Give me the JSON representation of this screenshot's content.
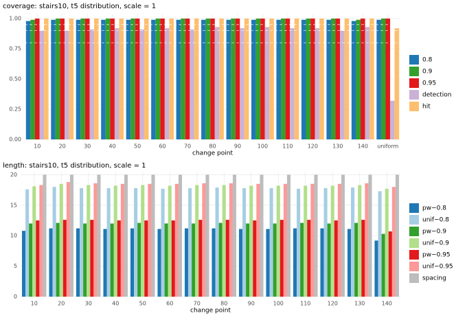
{
  "chart_data": [
    {
      "type": "bar",
      "title": "coverage: stairs10, t5 distribution, scale = 1",
      "x_label": "change point",
      "categories": [
        "10",
        "20",
        "30",
        "40",
        "50",
        "60",
        "70",
        "80",
        "90",
        "100",
        "110",
        "120",
        "130",
        "140",
        "uniform"
      ],
      "series": [
        {
          "name": "0.8",
          "color": "#1f78b4",
          "values": [
            0.98,
            0.99,
            0.99,
            0.99,
            0.99,
            0.99,
            0.99,
            0.99,
            0.99,
            0.99,
            0.99,
            0.99,
            0.99,
            0.98,
            0.99
          ]
        },
        {
          "name": "0.9",
          "color": "#33a02c",
          "values": [
            0.99,
            1.0,
            1.0,
            1.0,
            1.0,
            1.0,
            1.0,
            1.0,
            1.0,
            1.0,
            1.0,
            1.0,
            1.0,
            0.99,
            1.0
          ]
        },
        {
          "name": "0.95",
          "color": "#e31a1c",
          "values": [
            1.0,
            1.0,
            1.0,
            1.0,
            1.0,
            1.0,
            1.0,
            1.0,
            1.0,
            1.0,
            1.0,
            1.0,
            1.0,
            1.0,
            1.0
          ]
        },
        {
          "name": "detection",
          "color": "#cab2d6",
          "values": [
            0.9,
            0.9,
            0.91,
            0.92,
            0.91,
            0.92,
            0.91,
            0.93,
            0.92,
            0.93,
            0.92,
            0.92,
            0.9,
            0.93,
            0.32
          ]
        },
        {
          "name": "hit",
          "color": "#fdbf6f",
          "values": [
            1.0,
            1.0,
            1.0,
            1.0,
            1.0,
            1.0,
            1.0,
            1.0,
            1.0,
            1.0,
            1.0,
            1.0,
            1.0,
            1.0,
            0.92
          ]
        }
      ],
      "ylim": [
        0,
        1.04
      ],
      "yticks": [
        {
          "value": 0,
          "label": "0.00"
        },
        0.25,
        {
          "value": 0.5,
          "label": "0.50"
        },
        0.75,
        {
          "value": 1,
          "label": "1.00"
        }
      ],
      "hlines": [
        0.8,
        0.9,
        0.95
      ],
      "grid": true,
      "legend": "right"
    },
    {
      "type": "bar",
      "title": "length: stairs10, t5 distribution, scale = 1",
      "x_label": "change point",
      "categories": [
        "10",
        "20",
        "30",
        "40",
        "50",
        "60",
        "70",
        "80",
        "90",
        "100",
        "110",
        "120",
        "130",
        "140"
      ],
      "series": [
        {
          "name": "pw−0.8",
          "color": "#1f78b4",
          "values": [
            10.8,
            11.2,
            11.2,
            11.1,
            11.2,
            11.1,
            11.2,
            11.2,
            11.1,
            11.1,
            11.2,
            11.2,
            11.1,
            9.2
          ]
        },
        {
          "name": "unif−0.8",
          "color": "#a6cee3",
          "values": [
            17.6,
            18.0,
            17.8,
            17.8,
            17.8,
            17.7,
            17.8,
            17.9,
            17.8,
            17.8,
            17.7,
            17.8,
            17.9,
            17.3
          ]
        },
        {
          "name": "pw−0.9",
          "color": "#33a02c",
          "values": [
            12.0,
            12.1,
            12.0,
            12.0,
            12.1,
            12.0,
            12.0,
            12.1,
            12.0,
            12.0,
            12.1,
            12.0,
            12.1,
            10.3
          ]
        },
        {
          "name": "unif−0.9",
          "color": "#b2df8a",
          "values": [
            18.1,
            18.5,
            18.3,
            18.2,
            18.3,
            18.2,
            18.3,
            18.3,
            18.2,
            18.2,
            18.2,
            18.2,
            18.3,
            17.7
          ]
        },
        {
          "name": "pw−0.95",
          "color": "#e31a1c",
          "values": [
            12.5,
            12.6,
            12.6,
            12.5,
            12.5,
            12.5,
            12.6,
            12.6,
            12.5,
            12.6,
            12.6,
            12.5,
            12.6,
            10.7
          ]
        },
        {
          "name": "unif−0.95",
          "color": "#fb9a99",
          "values": [
            18.3,
            18.8,
            18.6,
            18.5,
            18.5,
            18.5,
            18.6,
            18.6,
            18.5,
            18.5,
            18.5,
            18.5,
            18.6,
            18.0
          ]
        },
        {
          "name": "spacing",
          "color": "#bdbdbd",
          "values": [
            20,
            20,
            20,
            20,
            20,
            20,
            20,
            20,
            20,
            20,
            20,
            20,
            20,
            20
          ]
        }
      ],
      "ylim": [
        0,
        20.5
      ],
      "yticks": [
        0,
        5,
        10,
        15,
        20
      ],
      "grid": true,
      "legend": "right"
    }
  ]
}
